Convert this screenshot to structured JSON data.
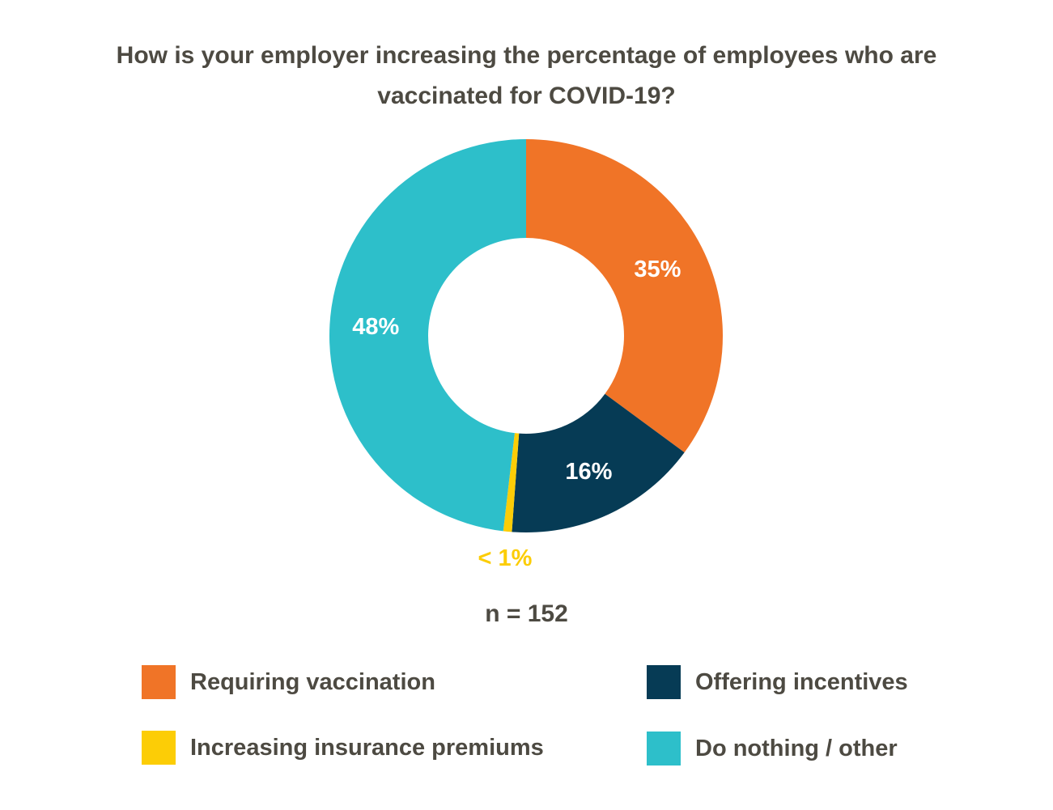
{
  "chart_data": {
    "type": "pie",
    "variant": "donut",
    "title_lines": [
      "How is your employer increasing the percentage of employees who are",
      "vaccinated for COVID-19?"
    ],
    "slices": [
      {
        "label": "Requiring vaccination",
        "value": 35,
        "display": "35%",
        "color": "#f07427",
        "label_color": "#ffffff"
      },
      {
        "label": "Offering incentives",
        "value": 16,
        "display": "16%",
        "color": "#063b55",
        "label_color": "#ffffff"
      },
      {
        "label": "Increasing insurance premiums",
        "value": 0.7,
        "display": "< 1%",
        "color": "#fccd06",
        "label_color": "#fccd06"
      },
      {
        "label": "Do nothing / other",
        "value": 48,
        "display": "48%",
        "color": "#2dbfca",
        "label_color": "#ffffff"
      }
    ],
    "start_angle": "12 o'clock",
    "direction": "clockwise",
    "sample_size": "n = 152",
    "legend": [
      {
        "label": "Requiring vaccination",
        "color": "#f07427"
      },
      {
        "label": "Offering incentives",
        "color": "#063b55"
      },
      {
        "label": "Increasing insurance premiums",
        "color": "#fccd06"
      },
      {
        "label": "Do nothing / other",
        "color": "#2dbfca"
      }
    ],
    "legend_placement": "bottom, two columns"
  }
}
